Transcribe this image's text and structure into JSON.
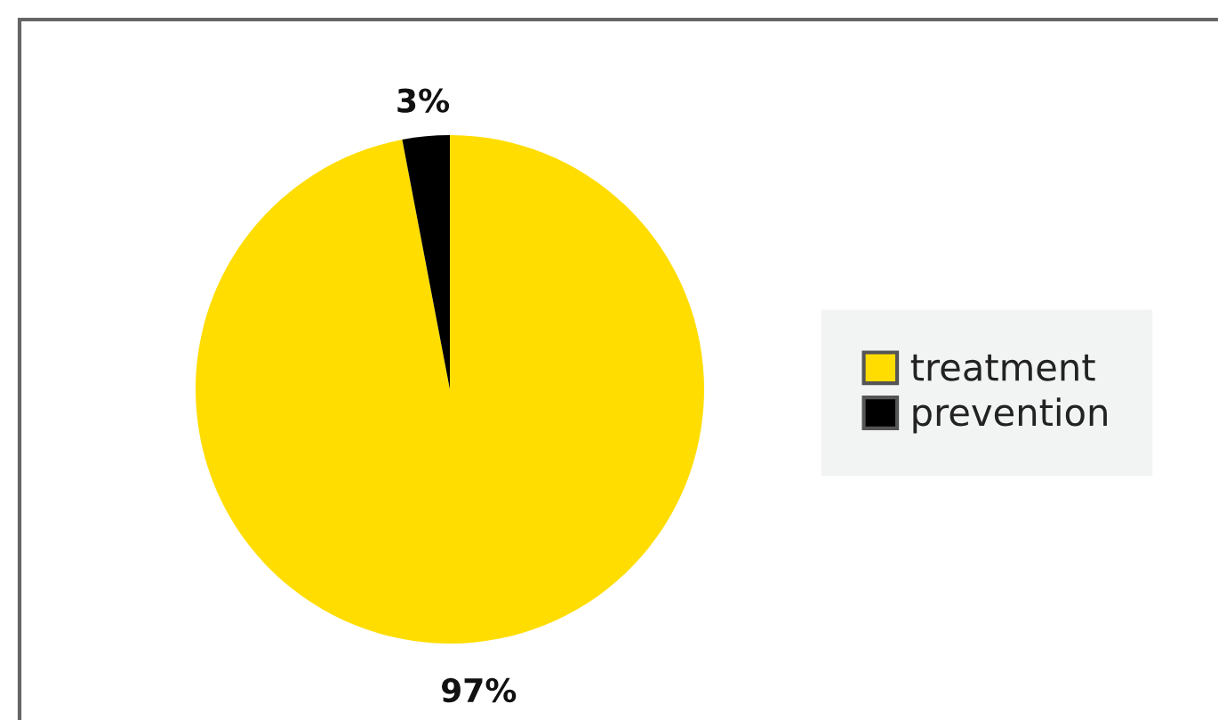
{
  "chart_data": {
    "type": "pie",
    "categories": [
      "treatment",
      "prevention"
    ],
    "values": [
      97,
      3
    ],
    "colors": [
      "#ffdd00",
      "#000000"
    ],
    "value_labels": [
      "97%",
      "3%"
    ],
    "legend": "right"
  }
}
